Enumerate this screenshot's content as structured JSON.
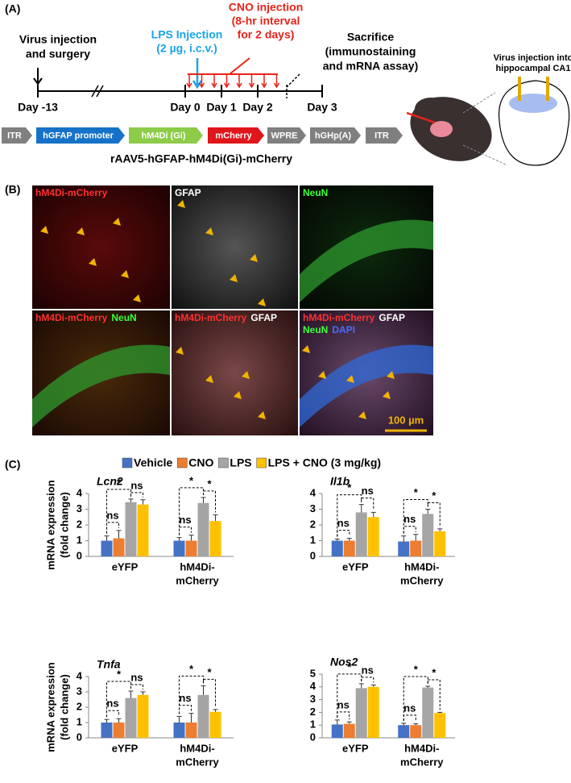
{
  "panel_a": {
    "label": "(A)",
    "events": {
      "virus": [
        "Virus injection",
        "and surgery"
      ],
      "lps": [
        "LPS Injection",
        "(2 µg, i.c.v.)"
      ],
      "cno": [
        "CNO injection",
        "(8-hr interval",
        "for 2 days)"
      ],
      "sacrifice": [
        "Sacrifice",
        "(immunostaining",
        "and mRNA assay)"
      ]
    },
    "days": [
      "Day -13",
      "Day 0",
      "Day 1",
      "Day 2",
      "Day 3"
    ],
    "construct": [
      "ITR",
      "hGFAP promoter",
      "hM4Di (Gi)",
      "mCherry",
      "WPRE",
      "hGHp(A)",
      "ITR"
    ],
    "vector": "rAAV5-hGFAP-hM4Di(Gi)-mCherry",
    "inset": [
      "Virus injection into",
      "hippocampal CA1"
    ]
  },
  "panel_b": {
    "label": "(B)",
    "tiles": [
      [
        {
          "text": "hM4Di-mCherry",
          "color": "#ff3030"
        }
      ],
      [
        {
          "text": "GFAP",
          "color": "#ffffff"
        }
      ],
      [
        {
          "text": "NeuN",
          "color": "#3cff3c"
        }
      ],
      [
        {
          "text": "hM4Di-mCherry",
          "color": "#ff3030"
        },
        {
          "text": "NeuN",
          "color": "#3cff3c"
        }
      ],
      [
        {
          "text": "hM4Di-mCherry",
          "color": "#ff3030"
        },
        {
          "text": "GFAP",
          "color": "#ffffff"
        }
      ],
      [
        {
          "text": "hM4Di-mCherry",
          "color": "#ff3030"
        },
        {
          "text": "GFAP",
          "color": "#ffffff"
        },
        {
          "text": "NeuN",
          "color": "#3cff3c"
        },
        {
          "text": "DAPI",
          "color": "#4a6bff"
        }
      ]
    ],
    "scale_bar": "100 µm"
  },
  "panel_c": {
    "label": "(C)"
  },
  "chart_data": [
    {
      "type": "bar",
      "title": "Lcn2",
      "ylabel": [
        "mRNA expression",
        "(fold change)"
      ],
      "categories": [
        [
          "eYFP"
        ],
        [
          "hM4Di-",
          "mCherry"
        ]
      ],
      "series": [
        {
          "name": "Vehicle",
          "color": "#4472c4",
          "values": [
            1.0,
            1.0
          ],
          "errors": [
            0.3,
            0.2
          ]
        },
        {
          "name": "CNO",
          "color": "#ed7d31",
          "values": [
            1.15,
            1.0
          ],
          "errors": [
            0.5,
            0.35
          ]
        },
        {
          "name": "LPS",
          "color": "#a5a5a5",
          "values": [
            3.45,
            3.4
          ],
          "errors": [
            0.2,
            0.35
          ]
        },
        {
          "name": "LPS + CNO (3 mg/kg)",
          "color": "#ffc000",
          "values": [
            3.3,
            2.25
          ],
          "errors": [
            0.3,
            0.4
          ]
        }
      ],
      "ylim": [
        0,
        4
      ],
      "yticks": [
        0,
        1,
        2,
        3,
        4
      ],
      "significance": [
        [
          "ns",
          "*",
          "ns"
        ],
        [
          "ns",
          "*",
          "*"
        ]
      ]
    },
    {
      "type": "bar",
      "title": "Il1b",
      "categories": [
        [
          "eYFP"
        ],
        [
          "hM4Di-",
          "mCherry"
        ]
      ],
      "series": [
        {
          "color": "#4472c4",
          "values": [
            1.0,
            0.95
          ],
          "errors": [
            0.1,
            0.35
          ]
        },
        {
          "color": "#ed7d31",
          "values": [
            1.0,
            1.0
          ],
          "errors": [
            0.15,
            0.4
          ]
        },
        {
          "color": "#a5a5a5",
          "values": [
            2.8,
            2.7
          ],
          "errors": [
            0.5,
            0.3
          ]
        },
        {
          "color": "#ffc000",
          "values": [
            2.5,
            1.6
          ],
          "errors": [
            0.3,
            0.15
          ]
        }
      ],
      "ylim": [
        0,
        4
      ],
      "yticks": [
        0,
        1,
        2,
        3,
        4
      ],
      "significance": [
        [
          "ns",
          "*",
          "ns"
        ],
        [
          "ns",
          "*",
          "*"
        ]
      ]
    },
    {
      "type": "bar",
      "title": "Tnfa",
      "ylabel": [
        "mRNA expression",
        "(fold change)"
      ],
      "categories": [
        [
          "eYFP"
        ],
        [
          "hM4Di-",
          "mCherry"
        ]
      ],
      "series": [
        {
          "color": "#4472c4",
          "values": [
            1.0,
            1.0
          ],
          "errors": [
            0.2,
            0.4
          ]
        },
        {
          "color": "#ed7d31",
          "values": [
            1.0,
            1.0
          ],
          "errors": [
            0.25,
            0.6
          ]
        },
        {
          "color": "#a5a5a5",
          "values": [
            2.6,
            2.8
          ],
          "errors": [
            0.45,
            0.6
          ]
        },
        {
          "color": "#ffc000",
          "values": [
            2.8,
            1.7
          ],
          "errors": [
            0.2,
            0.15
          ]
        }
      ],
      "ylim": [
        0,
        4
      ],
      "yticks": [
        0,
        1,
        2,
        3,
        4
      ],
      "significance": [
        [
          "ns",
          "*",
          "ns"
        ],
        [
          "ns",
          "*",
          "*"
        ]
      ]
    },
    {
      "type": "bar",
      "title": "Nos2",
      "categories": [
        [
          "eYFP"
        ],
        [
          "hM4Di-",
          "mCherry"
        ]
      ],
      "series": [
        {
          "color": "#4472c4",
          "values": [
            1.05,
            1.0
          ],
          "errors": [
            0.35,
            0.15
          ]
        },
        {
          "color": "#ed7d31",
          "values": [
            1.1,
            1.0
          ],
          "errors": [
            0.15,
            0.1
          ]
        },
        {
          "color": "#a5a5a5",
          "values": [
            3.9,
            3.95
          ],
          "errors": [
            0.35,
            0.1
          ]
        },
        {
          "color": "#ffc000",
          "values": [
            4.0,
            1.95
          ],
          "errors": [
            0.15,
            0.05
          ]
        }
      ],
      "ylim": [
        0,
        5
      ],
      "yticks": [
        0,
        1,
        2,
        3,
        4,
        5
      ],
      "significance": [
        [
          "ns",
          "*",
          "ns"
        ],
        [
          "ns",
          "*",
          "*"
        ]
      ]
    }
  ]
}
